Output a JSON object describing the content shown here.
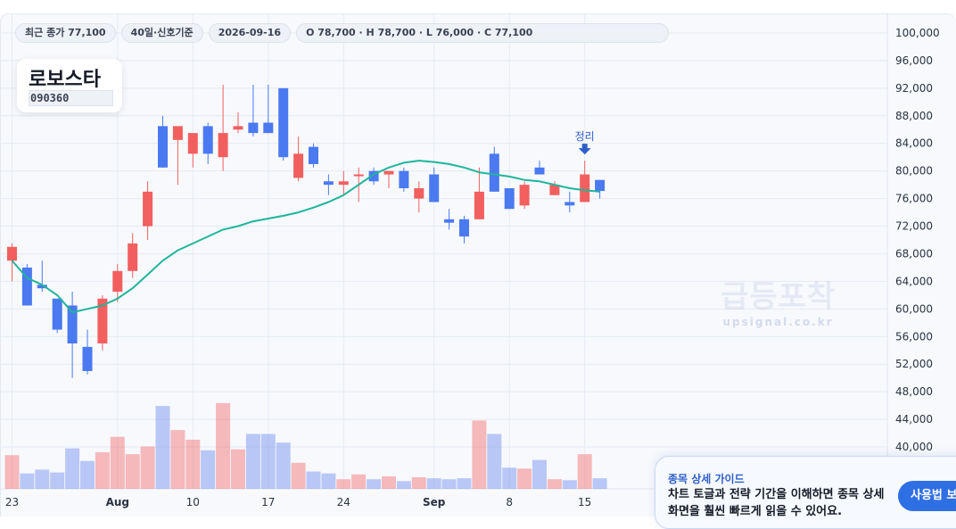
{
  "header_chips": {
    "close": "최근 종가 77,100",
    "period": "40일·신호기준",
    "date": "2026-09-16",
    "ohlc": "O 78,700 · H 78,700 · L 76,000 · C 77,100"
  },
  "stock": {
    "name": "로보스타",
    "code": "090360"
  },
  "watermark": {
    "title": "급등포착",
    "url": "upsignal.co.kr"
  },
  "signal": {
    "label": "정리",
    "icon": "arrow-down-icon"
  },
  "guide": {
    "label": "종목 상세 가이드",
    "text": "차트 토글과 전략 기간을 이해하면 종목 상세 화면을 훨씬 빠르게 읽을 수 있어요.",
    "button": "사용법 보기"
  },
  "colors": {
    "up": "#f25f5f",
    "down": "#4a79f0",
    "ma": "#1fb59a",
    "accent": "#2f6fe4"
  },
  "chart_data": {
    "type": "candlestick",
    "y_axis": {
      "range": [
        38000,
        101000
      ],
      "ticks": [
        40000,
        44000,
        48000,
        52000,
        56000,
        60000,
        64000,
        68000,
        72000,
        76000,
        80000,
        84000,
        88000,
        92000,
        96000,
        100000
      ],
      "tick_labels": [
        "40,000",
        "44,000",
        "48,000",
        "52,000",
        "56,000",
        "60,000",
        "64,000",
        "68,000",
        "72,000",
        "76,000",
        "80,000",
        "84,000",
        "88,000",
        "92,000",
        "96,000",
        "100,000"
      ]
    },
    "x_labels": [
      {
        "label": "23",
        "index": 0
      },
      {
        "label": "Aug",
        "index": 7
      },
      {
        "label": "10",
        "index": 12
      },
      {
        "label": "17",
        "index": 17
      },
      {
        "label": "24",
        "index": 22
      },
      {
        "label": "Sep",
        "index": 28
      },
      {
        "label": "8",
        "index": 33
      },
      {
        "label": "15",
        "index": 38
      }
    ],
    "candles": [
      {
        "o": 67000,
        "h": 69500,
        "l": 64000,
        "c": 69000
      },
      {
        "o": 66000,
        "h": 66500,
        "l": 60500,
        "c": 60500
      },
      {
        "o": 63500,
        "h": 67000,
        "l": 62500,
        "c": 63000
      },
      {
        "o": 61500,
        "h": 61500,
        "l": 56500,
        "c": 57000
      },
      {
        "o": 60500,
        "h": 62500,
        "l": 50000,
        "c": 55000
      },
      {
        "o": 54500,
        "h": 57000,
        "l": 50500,
        "c": 51000
      },
      {
        "o": 55000,
        "h": 62000,
        "l": 54000,
        "c": 61500
      },
      {
        "o": 62500,
        "h": 66500,
        "l": 61000,
        "c": 65500
      },
      {
        "o": 65500,
        "h": 71000,
        "l": 64500,
        "c": 69500
      },
      {
        "o": 72000,
        "h": 78500,
        "l": 70000,
        "c": 77000
      },
      {
        "o": 86500,
        "h": 88000,
        "l": 80500,
        "c": 80500
      },
      {
        "o": 84500,
        "h": 86500,
        "l": 78000,
        "c": 86500
      },
      {
        "o": 82500,
        "h": 85000,
        "l": 80500,
        "c": 85500
      },
      {
        "o": 86500,
        "h": 87000,
        "l": 81000,
        "c": 82500
      },
      {
        "o": 82000,
        "h": 92500,
        "l": 80000,
        "c": 85500
      },
      {
        "o": 86000,
        "h": 88500,
        "l": 85500,
        "c": 86500
      },
      {
        "o": 87000,
        "h": 92500,
        "l": 85000,
        "c": 85500
      },
      {
        "o": 87000,
        "h": 92500,
        "l": 85500,
        "c": 85500
      },
      {
        "o": 92000,
        "h": 92000,
        "l": 81500,
        "c": 82000
      },
      {
        "o": 79000,
        "h": 85000,
        "l": 78500,
        "c": 82500
      },
      {
        "o": 83500,
        "h": 84000,
        "l": 80500,
        "c": 81000
      },
      {
        "o": 78500,
        "h": 79500,
        "l": 76500,
        "c": 78000
      },
      {
        "o": 78000,
        "h": 80000,
        "l": 76500,
        "c": 78500
      },
      {
        "o": 79500,
        "h": 80500,
        "l": 75500,
        "c": 79500
      },
      {
        "o": 80000,
        "h": 80500,
        "l": 78000,
        "c": 78500
      },
      {
        "o": 79500,
        "h": 80000,
        "l": 77500,
        "c": 80000
      },
      {
        "o": 80000,
        "h": 80500,
        "l": 77000,
        "c": 77500
      },
      {
        "o": 76000,
        "h": 78500,
        "l": 74000,
        "c": 77500
      },
      {
        "o": 79500,
        "h": 80500,
        "l": 75500,
        "c": 75500
      },
      {
        "o": 73000,
        "h": 74500,
        "l": 71500,
        "c": 72500
      },
      {
        "o": 73000,
        "h": 73500,
        "l": 69500,
        "c": 70500
      },
      {
        "o": 73000,
        "h": 80500,
        "l": 73000,
        "c": 77000
      },
      {
        "o": 82500,
        "h": 83500,
        "l": 77000,
        "c": 77000
      },
      {
        "o": 77500,
        "h": 77500,
        "l": 74500,
        "c": 74500
      },
      {
        "o": 75000,
        "h": 78500,
        "l": 74500,
        "c": 78000
      },
      {
        "o": 80500,
        "h": 81500,
        "l": 79500,
        "c": 79500
      },
      {
        "o": 76500,
        "h": 78500,
        "l": 76500,
        "c": 78000
      },
      {
        "o": 75500,
        "h": 77000,
        "l": 74000,
        "c": 75000
      },
      {
        "o": 75500,
        "h": 81500,
        "l": 75500,
        "c": 79500
      },
      {
        "o": 78700,
        "h": 78700,
        "l": 76000,
        "c": 77100
      }
    ],
    "ma_series": [
      67000,
      64500,
      63500,
      62000,
      59500,
      60000,
      60500,
      61500,
      63000,
      65000,
      67000,
      68500,
      69500,
      70500,
      71500,
      72000,
      72700,
      73100,
      73500,
      74000,
      74700,
      75500,
      76500,
      78000,
      79500,
      80500,
      81200,
      81500,
      81300,
      81000,
      80500,
      79800,
      79500,
      79200,
      78700,
      78500,
      78000,
      77500,
      77200,
      77000
    ],
    "volumes": [
      0.35,
      0.16,
      0.2,
      0.17,
      0.42,
      0.29,
      0.38,
      0.54,
      0.36,
      0.44,
      0.86,
      0.61,
      0.51,
      0.4,
      0.89,
      0.41,
      0.57,
      0.57,
      0.48,
      0.27,
      0.18,
      0.16,
      0.1,
      0.15,
      0.1,
      0.13,
      0.08,
      0.12,
      0.11,
      0.1,
      0.11,
      0.71,
      0.57,
      0.22,
      0.21,
      0.3,
      0.1,
      0.09,
      0.36,
      0.11
    ],
    "signal_index": 38
  }
}
